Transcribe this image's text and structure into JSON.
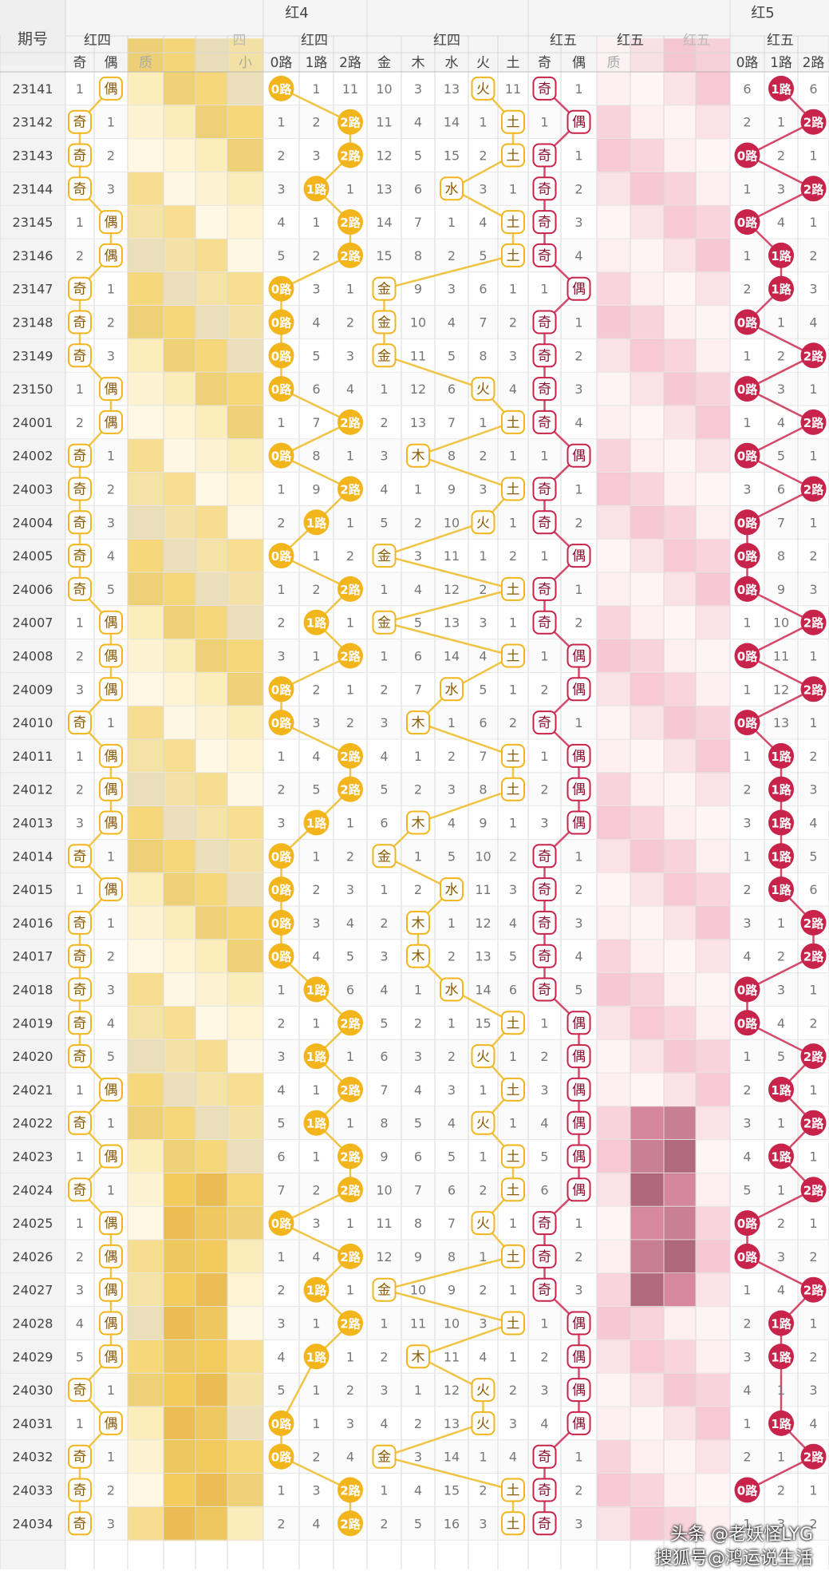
{
  "header": {
    "period_label": "期号",
    "group_red4": "红4",
    "group_red5": "红5",
    "sub_red4_a": "红四",
    "sub_red4_b": "四",
    "sub_red4_c": "红四",
    "sub_red4_d": "红四",
    "sub_red5_a": "红五",
    "sub_red5_b": "红五",
    "sub_red5_c": "红五",
    "sub_red5_d": "红五"
  },
  "column_labels": {
    "oe4": [
      "奇",
      "偶"
    ],
    "mid4": [
      "质",
      "",
      "",
      "小"
    ],
    "road4": [
      "0路",
      "1路",
      "2路"
    ],
    "wx4": [
      "金",
      "木",
      "水",
      "火",
      "土"
    ],
    "oe5": [
      "奇",
      "偶"
    ],
    "mid5": [
      "质",
      "",
      "",
      ""
    ],
    "road5": [
      "0路",
      "1路",
      "2路"
    ]
  },
  "colors": {
    "gold": "#f2b51c",
    "gold_light": "#fdf6dc",
    "gold_line": "#f0c445",
    "red": "#c8234a",
    "red_light": "#fbe6ec",
    "red_line": "#d34a6b",
    "grid": "#d9d9d9",
    "header_bg": "#f5f5f5",
    "text": "#555555"
  },
  "rows": [
    {
      "id": "23141",
      "oe4": [
        1,
        "偶"
      ],
      "r4": [
        "0路",
        1,
        11
      ],
      "wx4": [
        10,
        3,
        13,
        "火",
        11
      ],
      "oe5": [
        "奇",
        1
      ],
      "r5": [
        6,
        "1路",
        6
      ]
    },
    {
      "id": "23142",
      "oe4": [
        "奇",
        1
      ],
      "r4": [
        1,
        2,
        "2路"
      ],
      "wx4": [
        11,
        4,
        14,
        1,
        "土"
      ],
      "oe5": [
        1,
        "偶"
      ],
      "r5": [
        2,
        1,
        "2路"
      ]
    },
    {
      "id": "23143",
      "oe4": [
        "奇",
        2
      ],
      "r4": [
        2,
        3,
        "2路"
      ],
      "wx4": [
        12,
        5,
        15,
        2,
        "土"
      ],
      "oe5": [
        "奇",
        1
      ],
      "r5": [
        "0路",
        2,
        1
      ]
    },
    {
      "id": "23144",
      "oe4": [
        "奇",
        3
      ],
      "r4": [
        3,
        "1路",
        1
      ],
      "wx4": [
        13,
        6,
        "水",
        3,
        1
      ],
      "oe5": [
        "奇",
        2
      ],
      "r5": [
        1,
        3,
        "2路"
      ]
    },
    {
      "id": "23145",
      "oe4": [
        1,
        "偶"
      ],
      "r4": [
        4,
        1,
        "2路"
      ],
      "wx4": [
        14,
        7,
        1,
        4,
        "土"
      ],
      "oe5": [
        "奇",
        3
      ],
      "r5": [
        "0路",
        4,
        1
      ]
    },
    {
      "id": "23146",
      "oe4": [
        2,
        "偶"
      ],
      "r4": [
        5,
        2,
        "2路"
      ],
      "wx4": [
        15,
        8,
        2,
        5,
        "土"
      ],
      "oe5": [
        "奇",
        4
      ],
      "r5": [
        1,
        "1路",
        2
      ]
    },
    {
      "id": "23147",
      "oe4": [
        "奇",
        1
      ],
      "r4": [
        "0路",
        3,
        1
      ],
      "wx4": [
        "金",
        9,
        3,
        6,
        1
      ],
      "oe5": [
        1,
        "偶"
      ],
      "r5": [
        2,
        "1路",
        3
      ]
    },
    {
      "id": "23148",
      "oe4": [
        "奇",
        2
      ],
      "r4": [
        "0路",
        4,
        2
      ],
      "wx4": [
        "金",
        10,
        4,
        7,
        2
      ],
      "oe5": [
        "奇",
        1
      ],
      "r5": [
        "0路",
        1,
        4
      ]
    },
    {
      "id": "23149",
      "oe4": [
        "奇",
        3
      ],
      "r4": [
        "0路",
        5,
        3
      ],
      "wx4": [
        "金",
        11,
        5,
        8,
        3
      ],
      "oe5": [
        "奇",
        2
      ],
      "r5": [
        1,
        2,
        "2路"
      ]
    },
    {
      "id": "23150",
      "oe4": [
        1,
        "偶"
      ],
      "r4": [
        "0路",
        6,
        4
      ],
      "wx4": [
        1,
        12,
        6,
        "火",
        4
      ],
      "oe5": [
        "奇",
        3
      ],
      "r5": [
        "0路",
        3,
        1
      ]
    },
    {
      "id": "24001",
      "oe4": [
        2,
        "偶"
      ],
      "r4": [
        1,
        7,
        "2路"
      ],
      "wx4": [
        2,
        13,
        7,
        1,
        "土"
      ],
      "oe5": [
        "奇",
        4
      ],
      "r5": [
        1,
        4,
        "2路"
      ]
    },
    {
      "id": "24002",
      "oe4": [
        "奇",
        1
      ],
      "r4": [
        "0路",
        8,
        1
      ],
      "wx4": [
        3,
        "木",
        8,
        2,
        1
      ],
      "oe5": [
        1,
        "偶"
      ],
      "r5": [
        "0路",
        5,
        1
      ]
    },
    {
      "id": "24003",
      "oe4": [
        "奇",
        2
      ],
      "r4": [
        1,
        9,
        "2路"
      ],
      "wx4": [
        4,
        1,
        9,
        3,
        "土"
      ],
      "oe5": [
        "奇",
        1
      ],
      "r5": [
        3,
        6,
        "2路"
      ]
    },
    {
      "id": "24004",
      "oe4": [
        "奇",
        3
      ],
      "r4": [
        2,
        "1路",
        1
      ],
      "wx4": [
        5,
        2,
        10,
        "火",
        1
      ],
      "oe5": [
        "奇",
        2
      ],
      "r5": [
        "0路",
        7,
        1
      ]
    },
    {
      "id": "24005",
      "oe4": [
        "奇",
        4
      ],
      "r4": [
        "0路",
        1,
        2
      ],
      "wx4": [
        "金",
        3,
        11,
        1,
        2
      ],
      "oe5": [
        1,
        "偶"
      ],
      "r5": [
        "0路",
        8,
        2
      ]
    },
    {
      "id": "24006",
      "oe4": [
        "奇",
        5
      ],
      "r4": [
        1,
        2,
        "2路"
      ],
      "wx4": [
        1,
        4,
        12,
        2,
        "土"
      ],
      "oe5": [
        "奇",
        1
      ],
      "r5": [
        "0路",
        9,
        3
      ]
    },
    {
      "id": "24007",
      "oe4": [
        1,
        "偶"
      ],
      "r4": [
        2,
        "1路",
        1
      ],
      "wx4": [
        "金",
        5,
        13,
        3,
        1
      ],
      "oe5": [
        "奇",
        2
      ],
      "r5": [
        1,
        10,
        "2路"
      ]
    },
    {
      "id": "24008",
      "oe4": [
        2,
        "偶"
      ],
      "r4": [
        3,
        1,
        "2路"
      ],
      "wx4": [
        1,
        6,
        14,
        4,
        "土"
      ],
      "oe5": [
        1,
        "偶"
      ],
      "r5": [
        "0路",
        11,
        1
      ]
    },
    {
      "id": "24009",
      "oe4": [
        3,
        "偶"
      ],
      "r4": [
        "0路",
        2,
        1
      ],
      "wx4": [
        2,
        7,
        "水",
        5,
        1
      ],
      "oe5": [
        2,
        "偶"
      ],
      "r5": [
        1,
        12,
        "2路"
      ]
    },
    {
      "id": "24010",
      "oe4": [
        "奇",
        1
      ],
      "r4": [
        "0路",
        3,
        2
      ],
      "wx4": [
        3,
        "木",
        1,
        6,
        2
      ],
      "oe5": [
        "奇",
        1
      ],
      "r5": [
        "0路",
        13,
        1
      ]
    },
    {
      "id": "24011",
      "oe4": [
        1,
        "偶"
      ],
      "r4": [
        1,
        4,
        "2路"
      ],
      "wx4": [
        4,
        1,
        2,
        7,
        "土"
      ],
      "oe5": [
        1,
        "偶"
      ],
      "r5": [
        1,
        "1路",
        2
      ]
    },
    {
      "id": "24012",
      "oe4": [
        2,
        "偶"
      ],
      "r4": [
        2,
        5,
        "2路"
      ],
      "wx4": [
        5,
        2,
        3,
        8,
        "土"
      ],
      "oe5": [
        2,
        "偶"
      ],
      "r5": [
        2,
        "1路",
        3
      ]
    },
    {
      "id": "24013",
      "oe4": [
        3,
        "偶"
      ],
      "r4": [
        3,
        "1路",
        1
      ],
      "wx4": [
        6,
        "木",
        4,
        9,
        1
      ],
      "oe5": [
        3,
        "偶"
      ],
      "r5": [
        3,
        "1路",
        4
      ]
    },
    {
      "id": "24014",
      "oe4": [
        "奇",
        1
      ],
      "r4": [
        "0路",
        1,
        2
      ],
      "wx4": [
        "金",
        1,
        5,
        10,
        2
      ],
      "oe5": [
        "奇",
        1
      ],
      "r5": [
        1,
        "1路",
        5
      ]
    },
    {
      "id": "24015",
      "oe4": [
        1,
        "偶"
      ],
      "r4": [
        "0路",
        2,
        3
      ],
      "wx4": [
        1,
        2,
        "水",
        11,
        3
      ],
      "oe5": [
        "奇",
        2
      ],
      "r5": [
        2,
        "1路",
        6
      ]
    },
    {
      "id": "24016",
      "oe4": [
        "奇",
        1
      ],
      "r4": [
        "0路",
        3,
        4
      ],
      "wx4": [
        2,
        "木",
        1,
        12,
        4
      ],
      "oe5": [
        "奇",
        3
      ],
      "r5": [
        3,
        1,
        "2路"
      ]
    },
    {
      "id": "24017",
      "oe4": [
        "奇",
        2
      ],
      "r4": [
        "0路",
        4,
        5
      ],
      "wx4": [
        3,
        "木",
        2,
        13,
        5
      ],
      "oe5": [
        "奇",
        4
      ],
      "r5": [
        4,
        2,
        "2路"
      ]
    },
    {
      "id": "24018",
      "oe4": [
        "奇",
        3
      ],
      "r4": [
        1,
        "1路",
        6
      ],
      "wx4": [
        4,
        1,
        "水",
        14,
        6
      ],
      "oe5": [
        "奇",
        5
      ],
      "r5": [
        "0路",
        3,
        1
      ]
    },
    {
      "id": "24019",
      "oe4": [
        "奇",
        4
      ],
      "r4": [
        2,
        1,
        "2路"
      ],
      "wx4": [
        5,
        2,
        1,
        15,
        "土"
      ],
      "oe5": [
        1,
        "偶"
      ],
      "r5": [
        "0路",
        4,
        2
      ]
    },
    {
      "id": "24020",
      "oe4": [
        "奇",
        5
      ],
      "r4": [
        3,
        "1路",
        1
      ],
      "wx4": [
        6,
        3,
        2,
        "火",
        1
      ],
      "oe5": [
        2,
        "偶"
      ],
      "r5": [
        1,
        5,
        "2路"
      ]
    },
    {
      "id": "24021",
      "oe4": [
        1,
        "偶"
      ],
      "r4": [
        4,
        1,
        "2路"
      ],
      "wx4": [
        7,
        4,
        3,
        1,
        "土"
      ],
      "oe5": [
        3,
        "偶"
      ],
      "r5": [
        2,
        "1路",
        1
      ]
    },
    {
      "id": "24022",
      "oe4": [
        "奇",
        1
      ],
      "r4": [
        5,
        "1路",
        1
      ],
      "wx4": [
        8,
        5,
        4,
        "火",
        1
      ],
      "oe5": [
        4,
        "偶"
      ],
      "r5": [
        3,
        1,
        "2路"
      ]
    },
    {
      "id": "24023",
      "oe4": [
        1,
        "偶"
      ],
      "r4": [
        6,
        1,
        "2路"
      ],
      "wx4": [
        9,
        6,
        5,
        1,
        "土"
      ],
      "oe5": [
        5,
        "偶"
      ],
      "r5": [
        4,
        "1路",
        1
      ]
    },
    {
      "id": "24024",
      "oe4": [
        "奇",
        1
      ],
      "r4": [
        7,
        2,
        "2路"
      ],
      "wx4": [
        10,
        7,
        6,
        2,
        "土"
      ],
      "oe5": [
        6,
        "偶"
      ],
      "r5": [
        5,
        1,
        "2路"
      ]
    },
    {
      "id": "24025",
      "oe4": [
        1,
        "偶"
      ],
      "r4": [
        "0路",
        3,
        1
      ],
      "wx4": [
        11,
        8,
        7,
        "火",
        1
      ],
      "oe5": [
        "奇",
        1
      ],
      "r5": [
        "0路",
        2,
        1
      ]
    },
    {
      "id": "24026",
      "oe4": [
        2,
        "偶"
      ],
      "r4": [
        1,
        4,
        "2路"
      ],
      "wx4": [
        12,
        9,
        8,
        1,
        "土"
      ],
      "oe5": [
        "奇",
        2
      ],
      "r5": [
        "0路",
        3,
        2
      ]
    },
    {
      "id": "24027",
      "oe4": [
        3,
        "偶"
      ],
      "r4": [
        2,
        "1路",
        1
      ],
      "wx4": [
        "金",
        10,
        9,
        2,
        1
      ],
      "oe5": [
        "奇",
        3
      ],
      "r5": [
        1,
        4,
        "2路"
      ]
    },
    {
      "id": "24028",
      "oe4": [
        4,
        "偶"
      ],
      "r4": [
        3,
        1,
        "2路"
      ],
      "wx4": [
        1,
        11,
        10,
        3,
        "土"
      ],
      "oe5": [
        1,
        "偶"
      ],
      "r5": [
        2,
        "1路",
        1
      ]
    },
    {
      "id": "24029",
      "oe4": [
        5,
        "偶"
      ],
      "r4": [
        4,
        "1路",
        1
      ],
      "wx4": [
        2,
        "木",
        11,
        4,
        1
      ],
      "oe5": [
        2,
        "偶"
      ],
      "r5": [
        3,
        "1路",
        2
      ]
    },
    {
      "id": "24030",
      "oe4": [
        "奇",
        1
      ],
      "r4": [
        5,
        1,
        2
      ],
      "wx4": [
        3,
        1,
        12,
        "火",
        2
      ],
      "oe5": [
        3,
        "偶"
      ],
      "r5": [
        4,
        1,
        3
      ]
    },
    {
      "id": "24031",
      "oe4": [
        1,
        "偶"
      ],
      "r4": [
        "0路",
        1,
        3
      ],
      "wx4": [
        4,
        2,
        13,
        "火",
        3
      ],
      "oe5": [
        4,
        "偶"
      ],
      "r5": [
        1,
        "1路",
        4
      ]
    },
    {
      "id": "24032",
      "oe4": [
        "奇",
        1
      ],
      "r4": [
        "0路",
        2,
        4
      ],
      "wx4": [
        "金",
        3,
        14,
        1,
        4
      ],
      "oe5": [
        "奇",
        1
      ],
      "r5": [
        2,
        1,
        "2路"
      ]
    },
    {
      "id": "24033",
      "oe4": [
        "奇",
        2
      ],
      "r4": [
        1,
        3,
        "2路"
      ],
      "wx4": [
        1,
        4,
        15,
        2,
        "土"
      ],
      "oe5": [
        "奇",
        2
      ],
      "r5": [
        "0路",
        2,
        1
      ]
    },
    {
      "id": "24034",
      "oe4": [
        "奇",
        3
      ],
      "r4": [
        2,
        4,
        "2路"
      ],
      "wx4": [
        2,
        5,
        16,
        3,
        "土"
      ],
      "oe5": [
        "奇",
        3
      ],
      "r5": [
        1,
        3,
        2
      ]
    }
  ],
  "watermark": {
    "line1": "头条 @老妖怪LYG",
    "line2": "搜狐号@鸿运说生活"
  }
}
